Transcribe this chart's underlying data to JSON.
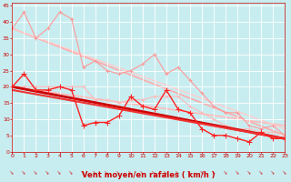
{
  "xlabel": "Vent moyen/en rafales ( km/h )",
  "xlim": [
    0,
    23
  ],
  "ylim": [
    0,
    46
  ],
  "xticks": [
    0,
    1,
    2,
    3,
    4,
    5,
    6,
    7,
    8,
    9,
    10,
    11,
    12,
    13,
    14,
    15,
    16,
    17,
    18,
    19,
    20,
    21,
    22,
    23
  ],
  "yticks": [
    0,
    5,
    10,
    15,
    20,
    25,
    30,
    35,
    40,
    45
  ],
  "background_color": "#c8edf0",
  "grid_color": "#ffffff",
  "series": [
    {
      "x": [
        0,
        1,
        2,
        3,
        4,
        5,
        6,
        7,
        8,
        9,
        10,
        11,
        12,
        13,
        14,
        15,
        16,
        17,
        18,
        19,
        20,
        21,
        22,
        23
      ],
      "y": [
        38,
        43,
        35,
        38,
        43,
        41,
        26,
        28,
        25,
        24,
        25,
        27,
        30,
        24,
        26,
        22,
        18,
        14,
        12,
        12,
        8,
        7,
        8,
        5
      ],
      "color": "#ff9999",
      "lw": 0.8,
      "marker": "+",
      "ms": 3.5,
      "linestyle": "-",
      "zorder": 2
    },
    {
      "x": [
        0,
        1,
        2,
        3,
        4,
        5,
        6,
        7,
        8,
        9,
        10,
        11,
        12,
        13,
        14,
        15,
        16,
        17,
        18,
        19,
        20,
        21,
        22,
        23
      ],
      "y": [
        20,
        20,
        20,
        20,
        20,
        20,
        20,
        16,
        16,
        15,
        16,
        16,
        17,
        17,
        17,
        14,
        12,
        10,
        8,
        7,
        7,
        6,
        6,
        5
      ],
      "color": "#ffbbbb",
      "lw": 0.8,
      "marker": "+",
      "ms": 3.0,
      "linestyle": "-",
      "zorder": 2
    },
    {
      "x": [
        0,
        1,
        2,
        3,
        4,
        5,
        6,
        7,
        8,
        9,
        10,
        11,
        12,
        13,
        14,
        15,
        16,
        17,
        18,
        19,
        20,
        21,
        22,
        23
      ],
      "y": [
        20,
        24,
        19,
        19,
        20,
        19,
        8,
        9,
        9,
        11,
        17,
        14,
        13,
        19,
        13,
        12,
        7,
        5,
        5,
        4,
        3,
        6,
        4,
        4
      ],
      "color": "#ff2222",
      "lw": 1.0,
      "marker": "+",
      "ms": 4.0,
      "linestyle": "-",
      "zorder": 3
    },
    {
      "x": [
        0,
        23
      ],
      "y": [
        38,
        5
      ],
      "color": "#ffaaaa",
      "lw": 1.2,
      "marker": null,
      "ms": 0,
      "linestyle": "-",
      "zorder": 1
    },
    {
      "x": [
        0,
        23
      ],
      "y": [
        20,
        8
      ],
      "color": "#ffbbbb",
      "lw": 1.2,
      "marker": null,
      "ms": 0,
      "linestyle": "-",
      "zorder": 1
    },
    {
      "x": [
        0,
        23
      ],
      "y": [
        20,
        4
      ],
      "color": "#cc0000",
      "lw": 2.0,
      "marker": null,
      "ms": 0,
      "linestyle": "-",
      "zorder": 2
    },
    {
      "x": [
        0,
        23
      ],
      "y": [
        19,
        4
      ],
      "color": "#ee3333",
      "lw": 1.5,
      "marker": null,
      "ms": 0,
      "linestyle": "-",
      "zorder": 2
    },
    {
      "x": [
        0,
        23
      ],
      "y": [
        38,
        7
      ],
      "color": "#ffcccc",
      "lw": 1.0,
      "marker": null,
      "ms": 0,
      "linestyle": "-",
      "zorder": 1
    }
  ],
  "arrow_color": "#cc0000",
  "xlabel_color": "#cc0000",
  "tick_color": "#cc0000",
  "xlabel_fontsize": 6,
  "tick_fontsize": 4.5
}
